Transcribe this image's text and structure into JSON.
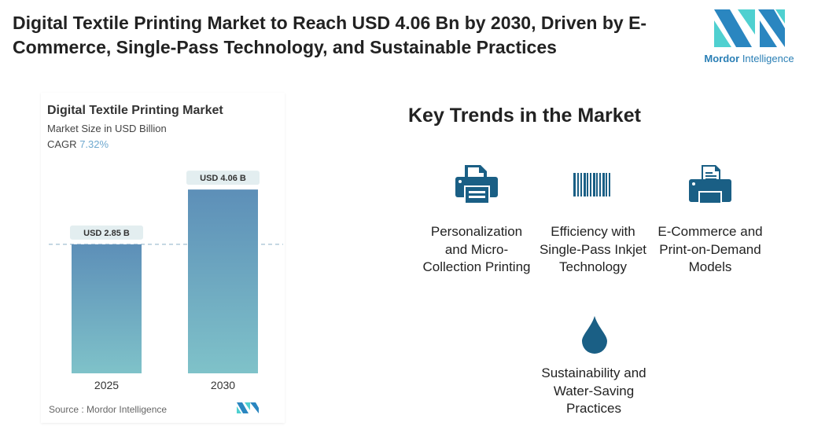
{
  "header": {
    "title": "Digital Textile Printing Market to Reach USD 4.06 Bn by 2030, Driven by E-Commerce, Single-Pass Technology, and Sustainable Practices",
    "logo_text_1": "Mordor",
    "logo_text_2": "Intelligence"
  },
  "chart_data": {
    "type": "bar",
    "title": "Digital Textile Printing Market",
    "subtitle": "Market Size in USD Billion",
    "cagr_label": "CAGR",
    "cagr_value": "7.32%",
    "categories": [
      "2025",
      "2030"
    ],
    "values": [
      2.85,
      4.06
    ],
    "data_labels": [
      "USD 2.85 B",
      "USD 4.06 B"
    ],
    "source": "Source :  Mordor Intelligence",
    "bar_color_top": "#5d8fb8",
    "bar_color_bottom": "#7fc2c9"
  },
  "trends": {
    "title": "Key Trends in the Market",
    "items": [
      {
        "label": "Personalization and Micro-Collection Printing",
        "icon": "printer-icon"
      },
      {
        "label": "Efficiency with Single-Pass Inkjet Technology",
        "icon": "barcode-icon"
      },
      {
        "label": "E-Commerce and Print-on-Demand Models",
        "icon": "document-printer-icon"
      },
      {
        "label": "Sustainability and Water-Saving Practices",
        "icon": "water-drop-icon"
      }
    ],
    "icon_color": "#1a5f85"
  }
}
